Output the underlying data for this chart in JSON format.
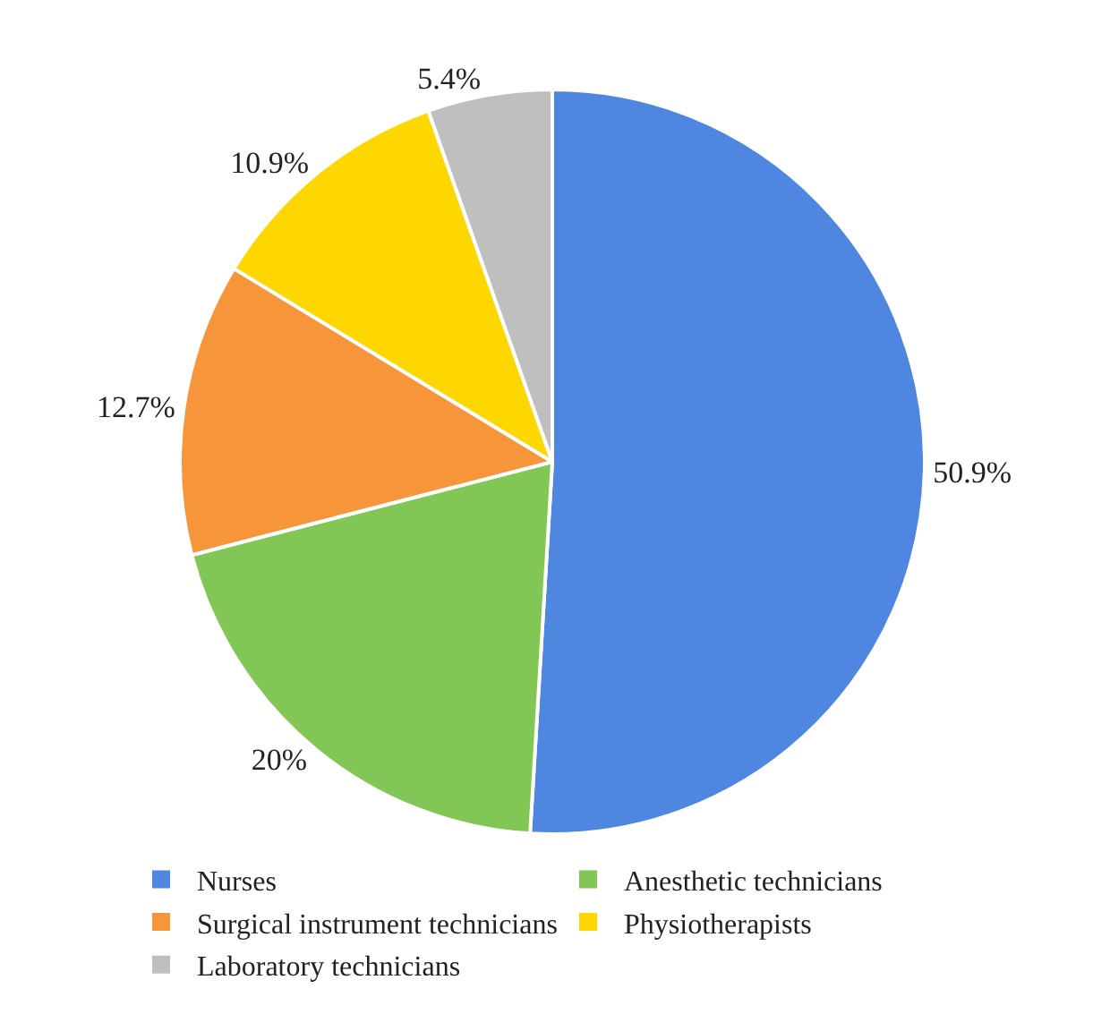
{
  "chart_data": {
    "type": "pie",
    "categories": [
      "Nurses",
      "Anesthetic technicians",
      "Surgical instrument technicians",
      "Physiotherapists",
      "Laboratory technicians"
    ],
    "values": [
      50.9,
      20,
      12.7,
      10.9,
      5.4
    ],
    "value_labels": [
      "50.9%",
      "20%",
      "12.7%",
      "10.9%",
      "5.4%"
    ],
    "colors": [
      "#4f86e0",
      "#82c655",
      "#f7953b",
      "#ffd700",
      "#bfbfbf"
    ],
    "legend": "bottom"
  }
}
